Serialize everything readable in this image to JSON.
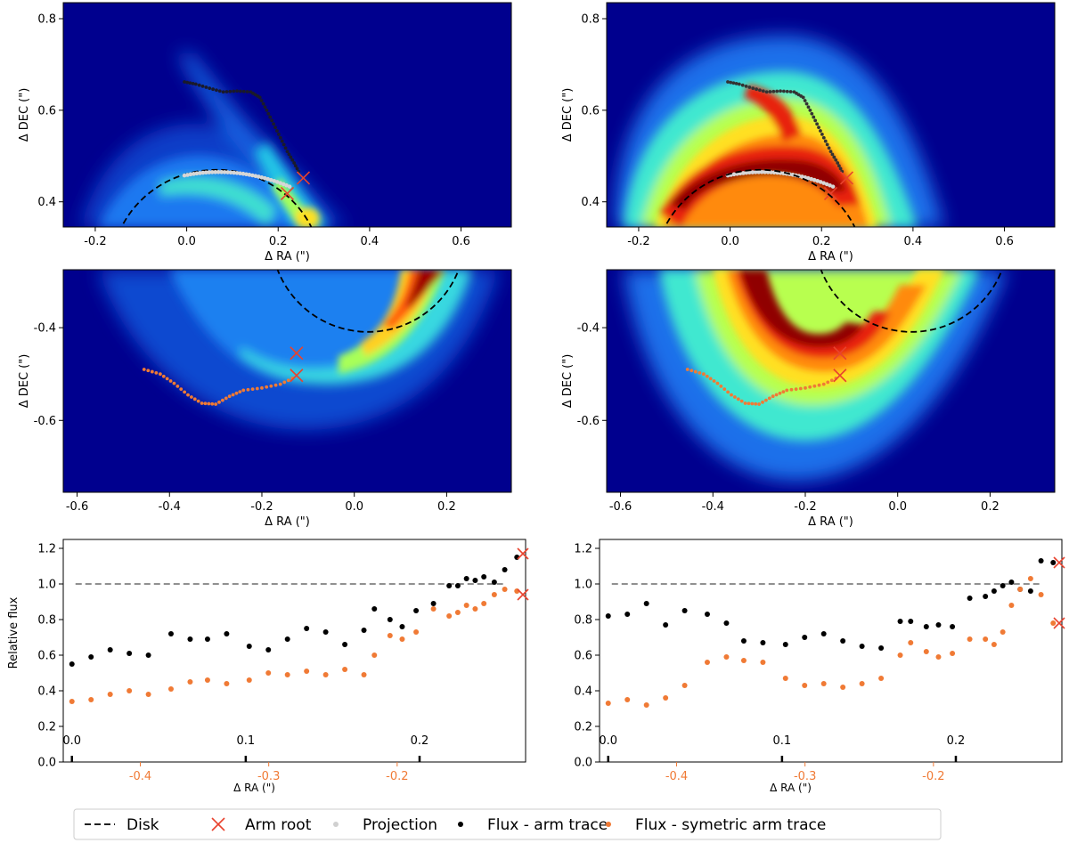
{
  "chart_data": [
    {
      "type": "heatmap",
      "panel": "top-left",
      "xlabel": "Δ RA (\")",
      "ylabel": "Δ DEC (\")",
      "xlim": [
        -0.27,
        0.71
      ],
      "ylim": [
        0.345,
        0.835
      ],
      "xticks": [
        -0.2,
        0.0,
        0.2,
        0.4,
        0.6
      ],
      "xtick_labels": [
        "-0.2",
        "0.0",
        "0.2",
        "0.4",
        "0.6"
      ],
      "yticks": [
        0.4,
        0.6,
        0.8
      ],
      "ytick_labels": [
        "0.4",
        "0.6",
        "0.8"
      ],
      "colormap": "jet",
      "disk_ellipse": {
        "center": [
          0.065,
          0.25
        ],
        "radii": [
          0.23,
          0.22
        ]
      },
      "arm_trace_color": "#222222",
      "projection_color": "#d0d0d0",
      "arm_roots": [
        [
          0.22,
          0.418
        ],
        [
          0.255,
          0.452
        ]
      ]
    },
    {
      "type": "heatmap",
      "panel": "top-right",
      "xlabel": "Δ RA (\")",
      "ylabel": "Δ DEC (\")",
      "xlim": [
        -0.27,
        0.71
      ],
      "ylim": [
        0.345,
        0.835
      ],
      "xticks": [
        -0.2,
        0.0,
        0.2,
        0.4,
        0.6
      ],
      "xtick_labels": [
        "-0.2",
        "0.0",
        "0.2",
        "0.4",
        "0.6"
      ],
      "yticks": [
        0.4,
        0.6,
        0.8
      ],
      "ytick_labels": [
        "0.4",
        "0.6",
        "0.8"
      ],
      "colormap": "jet",
      "arm_roots": [
        [
          0.22,
          0.418
        ],
        [
          0.255,
          0.452
        ]
      ]
    },
    {
      "type": "heatmap",
      "panel": "middle-left",
      "xlabel": "Δ RA (\")",
      "ylabel": "Δ DEC (\")",
      "xlim": [
        -0.63,
        0.34
      ],
      "ylim": [
        -0.755,
        -0.275
      ],
      "xticks": [
        -0.6,
        -0.4,
        -0.2,
        0.0,
        0.2
      ],
      "xtick_labels": [
        "-0.6",
        "-0.4",
        "-0.2",
        "0.0",
        "0.2"
      ],
      "yticks": [
        -0.6,
        -0.4
      ],
      "ytick_labels": [
        "-0.6",
        "-0.4"
      ],
      "colormap": "jet",
      "sym_trace_color": "#f07a35",
      "arm_roots": [
        [
          -0.125,
          -0.455
        ],
        [
          -0.125,
          -0.503
        ]
      ]
    },
    {
      "type": "heatmap",
      "panel": "middle-right",
      "xlabel": "Δ RA (\")",
      "ylabel": "Δ DEC (\")",
      "xlim": [
        -0.63,
        0.34
      ],
      "ylim": [
        -0.755,
        -0.275
      ],
      "xticks": [
        -0.6,
        -0.4,
        -0.2,
        0.0,
        0.2
      ],
      "xtick_labels": [
        "-0.6",
        "-0.4",
        "-0.2",
        "0.0",
        "0.2"
      ],
      "yticks": [
        -0.6,
        -0.4
      ],
      "ytick_labels": [
        "-0.6",
        "-0.4"
      ],
      "colormap": "jet",
      "arm_roots": [
        [
          -0.125,
          -0.455
        ],
        [
          -0.125,
          -0.503
        ]
      ]
    },
    {
      "type": "scatter",
      "panel": "bottom-left",
      "ylabel": "Relative flux",
      "xlabel": "Δ RA (\")",
      "ylim": [
        0.0,
        1.25
      ],
      "yticks": [
        0.0,
        0.2,
        0.4,
        0.6,
        0.8,
        1.0,
        1.2
      ],
      "ytick_labels": [
        "0.0",
        "0.2",
        "0.4",
        "0.6",
        "0.8",
        "1.0",
        "1.2"
      ],
      "xlim_top": [
        -0.005,
        0.261
      ],
      "top_ticks": [
        0.0,
        0.1,
        0.2
      ],
      "top_tick_labels": [
        "0.0",
        "0.1",
        "0.2"
      ],
      "xlim_bottom": [
        -0.46,
        -0.1
      ],
      "bottom_ticks": [
        -0.4,
        -0.3,
        -0.2
      ],
      "bottom_tick_labels": [
        "-0.4",
        "-0.3",
        "-0.2"
      ],
      "reference_line": 1.0,
      "arm_root_values": [
        1.17,
        0.94
      ],
      "series": [
        {
          "name": "Flux - arm trace",
          "color": "#000000",
          "x": [
            0.0,
            0.011,
            0.022,
            0.033,
            0.044,
            0.057,
            0.068,
            0.078,
            0.089,
            0.102,
            0.113,
            0.124,
            0.135,
            0.146,
            0.157,
            0.168,
            0.174,
            0.183,
            0.19,
            0.198,
            0.208,
            0.217,
            0.222,
            0.227,
            0.232,
            0.237,
            0.243,
            0.249,
            0.256
          ],
          "values": [
            0.55,
            0.59,
            0.63,
            0.61,
            0.6,
            0.72,
            0.69,
            0.69,
            0.72,
            0.65,
            0.63,
            0.69,
            0.75,
            0.73,
            0.66,
            0.74,
            0.86,
            0.8,
            0.76,
            0.85,
            0.89,
            0.99,
            0.99,
            1.03,
            1.02,
            1.04,
            1.01,
            1.08,
            1.15
          ]
        },
        {
          "name": "Flux - symetric arm trace",
          "color": "#f07a35",
          "x": [
            0.0,
            0.011,
            0.022,
            0.033,
            0.044,
            0.057,
            0.068,
            0.078,
            0.089,
            0.102,
            0.113,
            0.124,
            0.135,
            0.146,
            0.157,
            0.168,
            0.174,
            0.183,
            0.19,
            0.198,
            0.208,
            0.217,
            0.222,
            0.227,
            0.232,
            0.237,
            0.243,
            0.249,
            0.256
          ],
          "values": [
            0.34,
            0.35,
            0.38,
            0.4,
            0.38,
            0.41,
            0.45,
            0.46,
            0.44,
            0.46,
            0.5,
            0.49,
            0.51,
            0.49,
            0.52,
            0.49,
            0.6,
            0.71,
            0.69,
            0.73,
            0.86,
            0.82,
            0.84,
            0.88,
            0.86,
            0.89,
            0.94,
            0.97,
            0.96
          ]
        }
      ]
    },
    {
      "type": "scatter",
      "panel": "bottom-right",
      "ylabel": "",
      "xlabel": "Δ RA (\")",
      "ylim": [
        0.0,
        1.25
      ],
      "yticks": [
        0.0,
        0.2,
        0.4,
        0.6,
        0.8,
        1.0,
        1.2
      ],
      "ytick_labels": [
        "0.0",
        "0.2",
        "0.4",
        "0.6",
        "0.8",
        "1.0",
        "1.2"
      ],
      "xlim_top": [
        -0.005,
        0.261
      ],
      "top_ticks": [
        0.0,
        0.1,
        0.2
      ],
      "top_tick_labels": [
        "0.0",
        "0.1",
        "0.2"
      ],
      "xlim_bottom": [
        -0.46,
        -0.1
      ],
      "bottom_ticks": [
        -0.4,
        -0.3,
        -0.2
      ],
      "bottom_tick_labels": [
        "-0.4",
        "-0.3",
        "-0.2"
      ],
      "reference_line": 1.0,
      "arm_root_values": [
        1.12,
        0.78
      ],
      "series": [
        {
          "name": "Flux - arm trace",
          "color": "#000000",
          "x": [
            0.0,
            0.011,
            0.022,
            0.033,
            0.044,
            0.057,
            0.068,
            0.078,
            0.089,
            0.102,
            0.113,
            0.124,
            0.135,
            0.146,
            0.157,
            0.168,
            0.174,
            0.183,
            0.19,
            0.198,
            0.208,
            0.217,
            0.222,
            0.227,
            0.232,
            0.237,
            0.243,
            0.249,
            0.256
          ],
          "values": [
            0.82,
            0.83,
            0.89,
            0.77,
            0.85,
            0.83,
            0.78,
            0.68,
            0.67,
            0.66,
            0.7,
            0.72,
            0.68,
            0.65,
            0.64,
            0.79,
            0.79,
            0.76,
            0.77,
            0.76,
            0.92,
            0.93,
            0.96,
            0.99,
            1.01,
            0.97,
            0.96,
            1.13,
            1.12
          ]
        },
        {
          "name": "Flux - symetric arm trace",
          "color": "#f07a35",
          "x": [
            0.0,
            0.011,
            0.022,
            0.033,
            0.044,
            0.057,
            0.068,
            0.078,
            0.089,
            0.102,
            0.113,
            0.124,
            0.135,
            0.146,
            0.157,
            0.168,
            0.174,
            0.183,
            0.19,
            0.198,
            0.208,
            0.217,
            0.222,
            0.227,
            0.232,
            0.237,
            0.243,
            0.249,
            0.256
          ],
          "values": [
            0.33,
            0.35,
            0.32,
            0.36,
            0.43,
            0.56,
            0.59,
            0.57,
            0.56,
            0.47,
            0.43,
            0.44,
            0.42,
            0.44,
            0.47,
            0.6,
            0.67,
            0.62,
            0.59,
            0.61,
            0.69,
            0.69,
            0.66,
            0.73,
            0.88,
            0.97,
            1.03,
            0.94,
            0.78
          ]
        }
      ]
    }
  ],
  "legend": [
    {
      "label": "Disk",
      "marker": "dashed-line",
      "color": "#000000"
    },
    {
      "label": "Arm root",
      "marker": "x",
      "color": "#e8432e"
    },
    {
      "label": "Projection",
      "marker": "dot",
      "color": "#d0d0d0"
    },
    {
      "label": "Flux - arm trace",
      "marker": "dot",
      "color": "#000000"
    },
    {
      "label": "Flux - symetric arm trace",
      "marker": "dot",
      "color": "#f07a35"
    }
  ],
  "colors": {
    "arm_root": "#e8432e",
    "sym_trace": "#f07a35",
    "reference_line": "#808080",
    "bottom_tick_labels": "#f07a35"
  }
}
